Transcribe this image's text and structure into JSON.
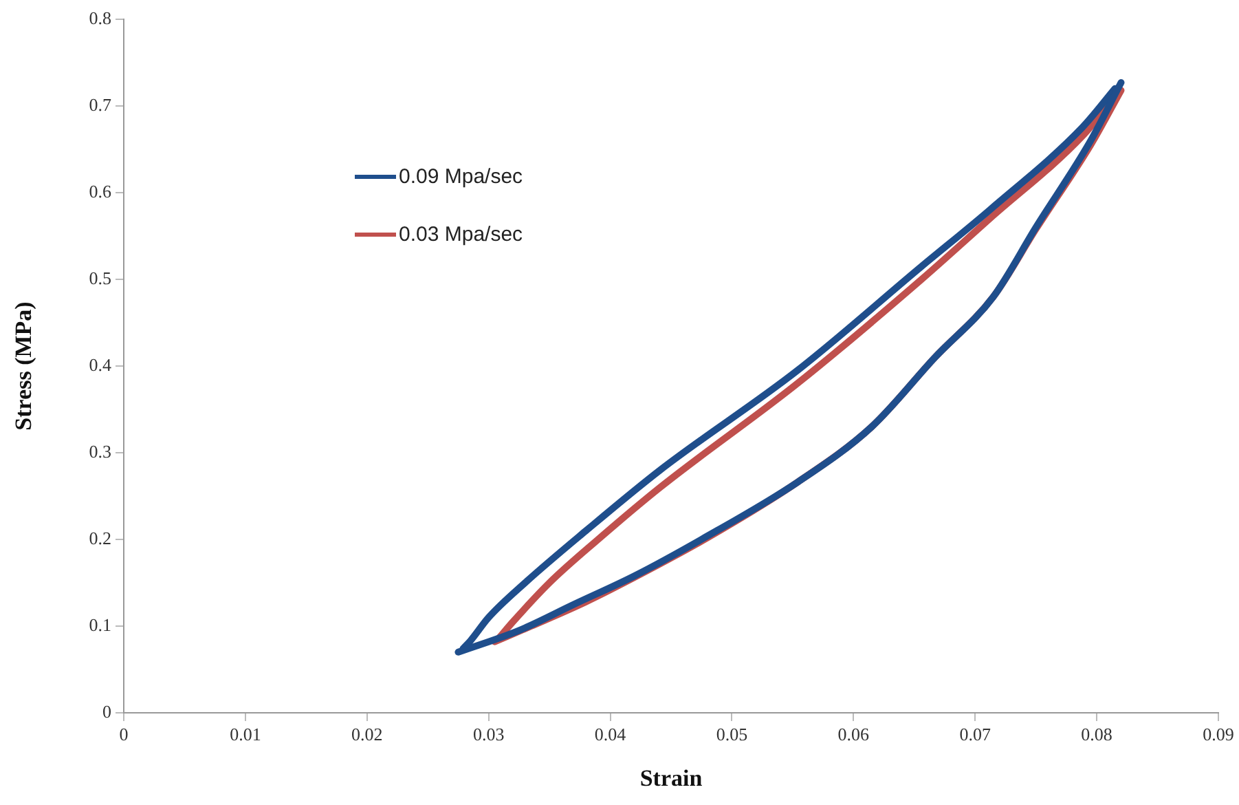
{
  "chart_data": {
    "type": "line",
    "xlabel": "Strain",
    "ylabel": "Stress (MPa)",
    "xlim": [
      0,
      0.09
    ],
    "xticks": [
      0,
      0.01,
      0.02,
      0.03,
      0.04,
      0.05,
      0.06,
      0.07,
      0.08,
      0.09
    ],
    "ylim": [
      0,
      0.8
    ],
    "yticks": [
      0,
      0.1,
      0.2,
      0.3,
      0.4,
      0.5,
      0.6,
      0.7,
      0.8
    ],
    "grid": false,
    "legend": "top left",
    "marker": "none",
    "line_style": "solid",
    "series": [
      {
        "name": "0.09 Mpa/sec",
        "color": "#1f4e8c",
        "x": [
          0.0275,
          0.0325,
          0.037,
          0.042,
          0.0475,
          0.0554,
          0.0615,
          0.0667,
          0.0715,
          0.075,
          0.0795,
          0.082
        ],
        "values": [
          0.07,
          0.095,
          0.125,
          0.158,
          0.2,
          0.266,
          0.33,
          0.41,
          0.48,
          0.56,
          0.66,
          0.727
        ]
      },
      {
        "color": "#1f4e8c",
        "x": [
          0.0279,
          0.0285,
          0.03,
          0.033,
          0.038,
          0.0441,
          0.0554,
          0.0656,
          0.0712,
          0.0788,
          0.0815
        ],
        "values": [
          0.074,
          0.083,
          0.11,
          0.15,
          0.21,
          0.28,
          0.395,
          0.515,
          0.58,
          0.675,
          0.72
        ]
      },
      {
        "name": "0.03 Mpa/sec",
        "color": "#c0504d",
        "x": [
          0.0305,
          0.0335,
          0.038,
          0.0425,
          0.048,
          0.0554,
          0.0615,
          0.0667,
          0.0715,
          0.075,
          0.0795,
          0.082
        ],
        "values": [
          0.082,
          0.1,
          0.128,
          0.16,
          0.202,
          0.266,
          0.33,
          0.41,
          0.48,
          0.558,
          0.655,
          0.718
        ]
      },
      {
        "color": "#c0504d",
        "x": [
          0.0309,
          0.032,
          0.035,
          0.039,
          0.0441,
          0.0554,
          0.0656,
          0.0712,
          0.0788,
          0.0815
        ],
        "values": [
          0.087,
          0.105,
          0.15,
          0.2,
          0.26,
          0.38,
          0.5,
          0.57,
          0.665,
          0.711
        ]
      }
    ]
  }
}
